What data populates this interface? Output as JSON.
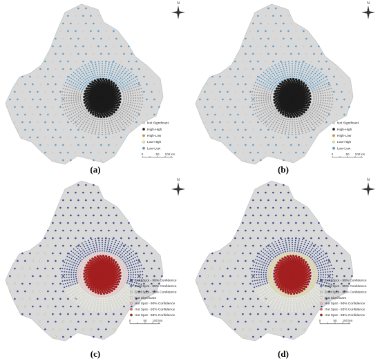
{
  "north_label": "N",
  "scale_bar": {
    "ticks": [
      "0",
      "50",
      "100 km"
    ]
  },
  "panels": [
    {
      "id": "a",
      "caption": "(a)",
      "legend": [
        {
          "label": "Not Significant",
          "color": "#d8d8d8"
        },
        {
          "label": "High-High",
          "color": "#1a1a1a"
        },
        {
          "label": "High-Low",
          "color": "#d99a2b"
        },
        {
          "label": "Low-High",
          "color": "#f2e8a0"
        },
        {
          "label": "Low-Low",
          "color": "#5f9ec7"
        }
      ],
      "palette": {
        "core": "#1a1a1a",
        "ring": "#9c9c9c",
        "outer": "#5f9ec7",
        "mixed": "#9c9c9c"
      }
    },
    {
      "id": "b",
      "caption": "(b)",
      "legend": [
        {
          "label": "Not Significant",
          "color": "#d8d8d8"
        },
        {
          "label": "High-High",
          "color": "#1a1a1a"
        },
        {
          "label": "High-Low",
          "color": "#d99a2b"
        },
        {
          "label": "Low-High",
          "color": "#f2e8a0"
        },
        {
          "label": "Low-Low",
          "color": "#5f9ec7"
        }
      ],
      "palette": {
        "core": "#1a1a1a",
        "ring": "#9c9c9c",
        "outer": "#5f9ec7",
        "mixed": "#9c9c9c"
      }
    },
    {
      "id": "c",
      "caption": "(c)",
      "legend": [
        {
          "label": "Cold Spot - 99% Confidence",
          "color": "#3b4a8c"
        },
        {
          "label": "Cold Spot - 95% Confidence",
          "color": "#6b79b3"
        },
        {
          "label": "Cold Spot - 90% Confidence",
          "color": "#c5cce6"
        },
        {
          "label": "Not Significant",
          "color": "#f0f0d8"
        },
        {
          "label": "Hot Spot - 90% Confidence",
          "color": "#f2b8b8"
        },
        {
          "label": "Hot Spot - 95% Confidence",
          "color": "#d96b6b"
        },
        {
          "label": "Hot Spot - 99% Confidence",
          "color": "#a31f1f"
        }
      ],
      "palette": {
        "core": "#a31f1f",
        "ring": "#f2b8b8",
        "outer": "#3b4a8c",
        "mixed": "#f0f0d8"
      }
    },
    {
      "id": "d",
      "caption": "(d)",
      "legend": [
        {
          "label": "Cold Spot - 99% Confidence",
          "color": "#3b4a8c"
        },
        {
          "label": "Cold Spot - 95% Confidence",
          "color": "#6b79b3"
        },
        {
          "label": "Cold Spot - 90% Confidence",
          "color": "#c5cce6"
        },
        {
          "label": "Not Significant",
          "color": "#f0f0d8"
        },
        {
          "label": "Hot Spot - 90% Confidence",
          "color": "#f2b8b8"
        },
        {
          "label": "Hot Spot - 95% Confidence",
          "color": "#d96b6b"
        },
        {
          "label": "Hot Spot - 99% Confidence",
          "color": "#a31f1f"
        }
      ],
      "palette": {
        "core": "#a31f1f",
        "ring": "#e0d070",
        "outer": "#3b4a8c",
        "mixed": "#f0f0d8"
      }
    }
  ]
}
